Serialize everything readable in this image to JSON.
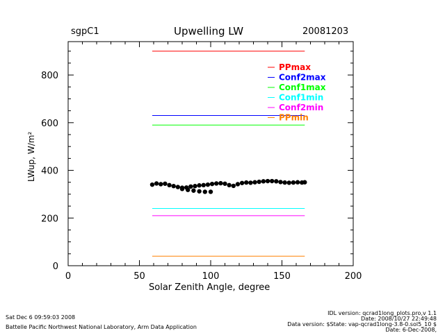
{
  "header": {
    "site": "sgpC1",
    "date": "20081203"
  },
  "footer": {
    "left1": "Sat Dec  6 09:59:03 2008",
    "left2": "Battelle Pacific Northwest National Laboratory, Arm Data Application",
    "right1": "IDL version: qcrad1long_plots.pro,v 1.1",
    "right2": "Date: 2008/10/27 22:49:48",
    "right3": "Data version: $State: vap-qcrad1long-3.8-0.sol5_10 $",
    "right4": "Date: 6-Dec-2008,"
  },
  "chart_data": {
    "type": "scatter",
    "title": "Upwelling LW",
    "xlabel": "Solar Zenith Angle, degree",
    "ylabel": "LWup, W/m²",
    "xlim": [
      0,
      200
    ],
    "ylim": [
      0,
      940
    ],
    "xticks": [
      0,
      50,
      100,
      150,
      200
    ],
    "yticks": [
      0,
      200,
      400,
      600,
      800
    ],
    "grid": false,
    "legend_position": "top-right",
    "limits": [
      {
        "name": "PPmax",
        "value": 900,
        "color": "#ff0000"
      },
      {
        "name": "Conf2max",
        "value": 630,
        "color": "#0000ff"
      },
      {
        "name": "Conf1max",
        "value": 590,
        "color": "#00ff00"
      },
      {
        "name": "Conf1min",
        "value": 240,
        "color": "#00ffff"
      },
      {
        "name": "Conf2min",
        "value": 210,
        "color": "#ff00ff"
      },
      {
        "name": "PPmin",
        "value": 40,
        "color": "#ff8000"
      }
    ],
    "limit_x_range": [
      59,
      166
    ],
    "series": [
      {
        "name": "LWup",
        "color": "#000000",
        "x": [
          59,
          62,
          65,
          68,
          71,
          74,
          77,
          80,
          83,
          86,
          89,
          92,
          95,
          98,
          101,
          104,
          107,
          110,
          113,
          116,
          119,
          122,
          125,
          128,
          131,
          134,
          137,
          140,
          143,
          146,
          149,
          152,
          155,
          158,
          161,
          164,
          166,
          80,
          84,
          88,
          92,
          96,
          100
        ],
        "y": [
          340,
          345,
          342,
          344,
          338,
          334,
          330,
          327,
          328,
          332,
          334,
          337,
          338,
          340,
          343,
          345,
          346,
          344,
          338,
          335,
          342,
          347,
          349,
          348,
          350,
          352,
          354,
          355,
          355,
          354,
          351,
          349,
          348,
          349,
          350,
          349,
          350,
          322,
          318,
          315,
          312,
          310,
          310
        ]
      }
    ]
  }
}
